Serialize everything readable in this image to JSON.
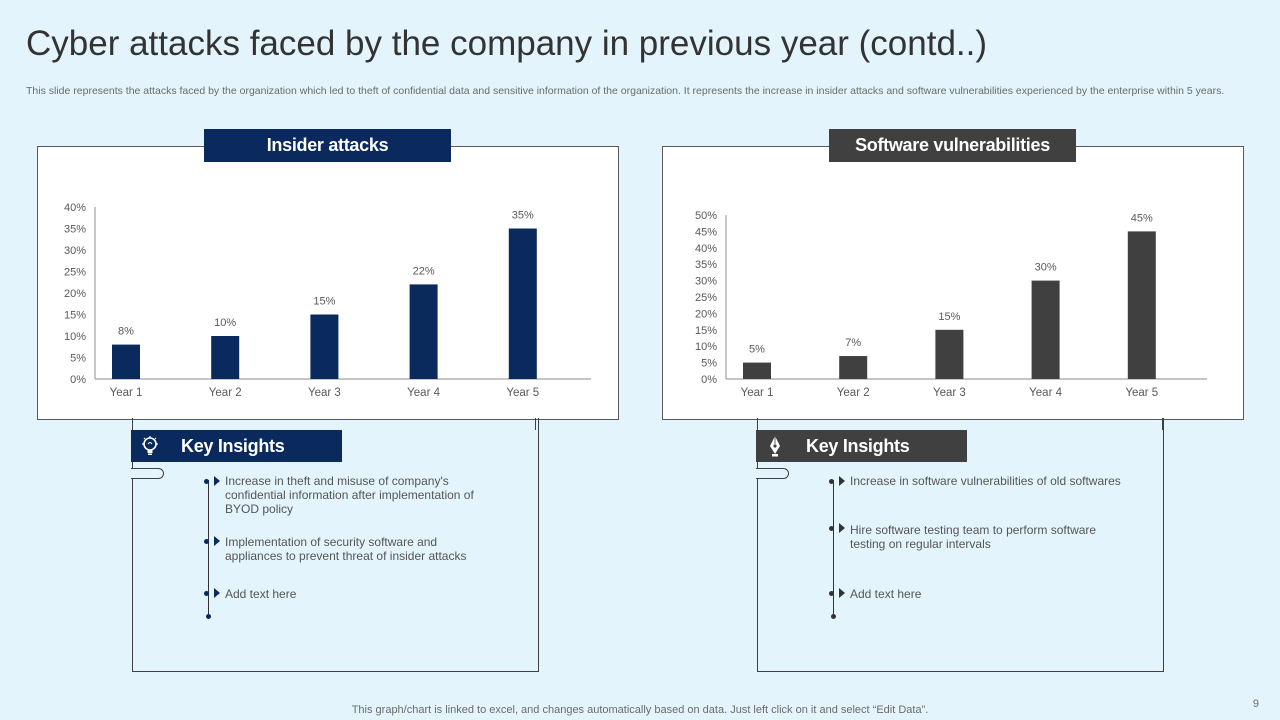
{
  "title": "Cyber attacks faced by the company in previous year (contd..)",
  "subtitle": "This slide represents the attacks faced by the organization which led to theft of confidential data and sensitive information of the organization. It represents the increase in insider attacks and software vulnerabilities experienced by the enterprise within 5 years.",
  "chart_data": [
    {
      "type": "bar",
      "title": "Insider attacks",
      "categories": [
        "Year 1",
        "Year 2",
        "Year 3",
        "Year 4",
        "Year 5"
      ],
      "values": [
        8,
        10,
        15,
        22,
        35
      ],
      "data_labels": [
        "8%",
        "10%",
        "15%",
        "22%",
        "35%"
      ],
      "ylim": [
        0,
        40
      ],
      "yticks": [
        "0%",
        "5%",
        "10%",
        "15%",
        "20%",
        "25%",
        "30%",
        "35%",
        "40%"
      ],
      "color": "#0a2a5e",
      "grid": false,
      "legend": "none"
    },
    {
      "type": "bar",
      "title": "Software  vulnerabilities",
      "categories": [
        "Year 1",
        "Year 2",
        "Year 3",
        "Year 4",
        "Year 5"
      ],
      "values": [
        5,
        7,
        15,
        30,
        45
      ],
      "data_labels": [
        "5%",
        "7%",
        "15%",
        "30%",
        "45%"
      ],
      "ylim": [
        0,
        50
      ],
      "yticks": [
        "0%",
        "5%",
        "10%",
        "15%",
        "20%",
        "25%",
        "30%",
        "35%",
        "40%",
        "45%",
        "50%"
      ],
      "color": "#404040",
      "grid": false,
      "legend": "none"
    }
  ],
  "insights_left": {
    "label": "Key Insights",
    "icon": "lightbulb-icon",
    "accent": "#0a2a5e",
    "items": [
      "Increase in theft and misuse of company's confidential information after implementation of BYOD  policy",
      "Implementation of security software and appliances to prevent threat of insider attacks",
      "Add text here"
    ]
  },
  "insights_right": {
    "label": "Key Insights",
    "icon": "pen-nib-icon",
    "accent": "#404040",
    "items": [
      "Increase in software vulnerabilities of old softwares",
      "Hire software testing team to perform software testing on regular intervals",
      "Add text here"
    ]
  },
  "footer": "This graph/chart is linked to excel,  and changes automatically based on data. Just left click on it and select “Edit Data”.",
  "page_number": "9"
}
